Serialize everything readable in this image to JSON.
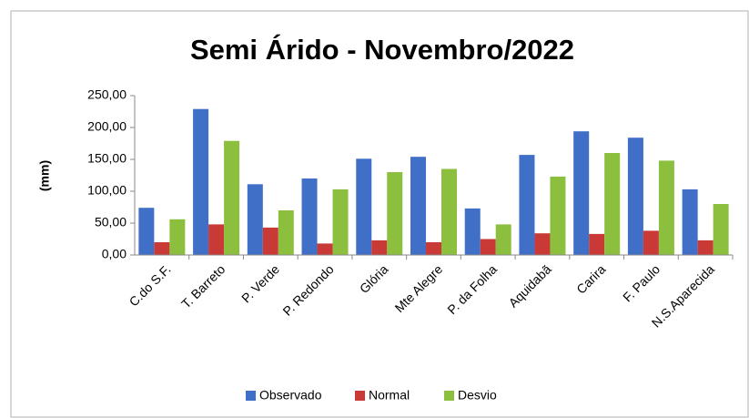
{
  "chart_data": {
    "type": "bar",
    "title": "Semi Árido - Novembro/2022",
    "y_label": "(mm)",
    "categories": [
      "C.do S.F.",
      "T. Barreto",
      "P. Verde",
      "P. Redondo",
      "Glória",
      "Mte Alegre",
      "P. da Folha",
      "Aquidabã",
      "Carira",
      "F. Paulo",
      "N.S.Aparecida"
    ],
    "series": [
      {
        "name": "Observado",
        "color": "#3f6fc6",
        "values": [
          74,
          229,
          111,
          120,
          151,
          154,
          73,
          157,
          194,
          184,
          103
        ]
      },
      {
        "name": "Normal",
        "color": "#c93a36",
        "values": [
          20,
          48,
          43,
          18,
          23,
          20,
          25,
          34,
          33,
          38,
          23
        ]
      },
      {
        "name": "Desvio",
        "color": "#8dbf3e",
        "values": [
          56,
          179,
          70,
          103,
          130,
          135,
          48,
          123,
          160,
          148,
          80
        ]
      }
    ],
    "ylim": [
      0,
      250
    ],
    "yticks": [
      {
        "value": 0,
        "label": "0,00"
      },
      {
        "value": 50,
        "label": "50,00"
      },
      {
        "value": 100,
        "label": "100,00"
      },
      {
        "value": 150,
        "label": "150,00"
      },
      {
        "value": 200,
        "label": "200,00"
      },
      {
        "value": 250,
        "label": "250,00"
      }
    ],
    "legend": "bottom"
  }
}
